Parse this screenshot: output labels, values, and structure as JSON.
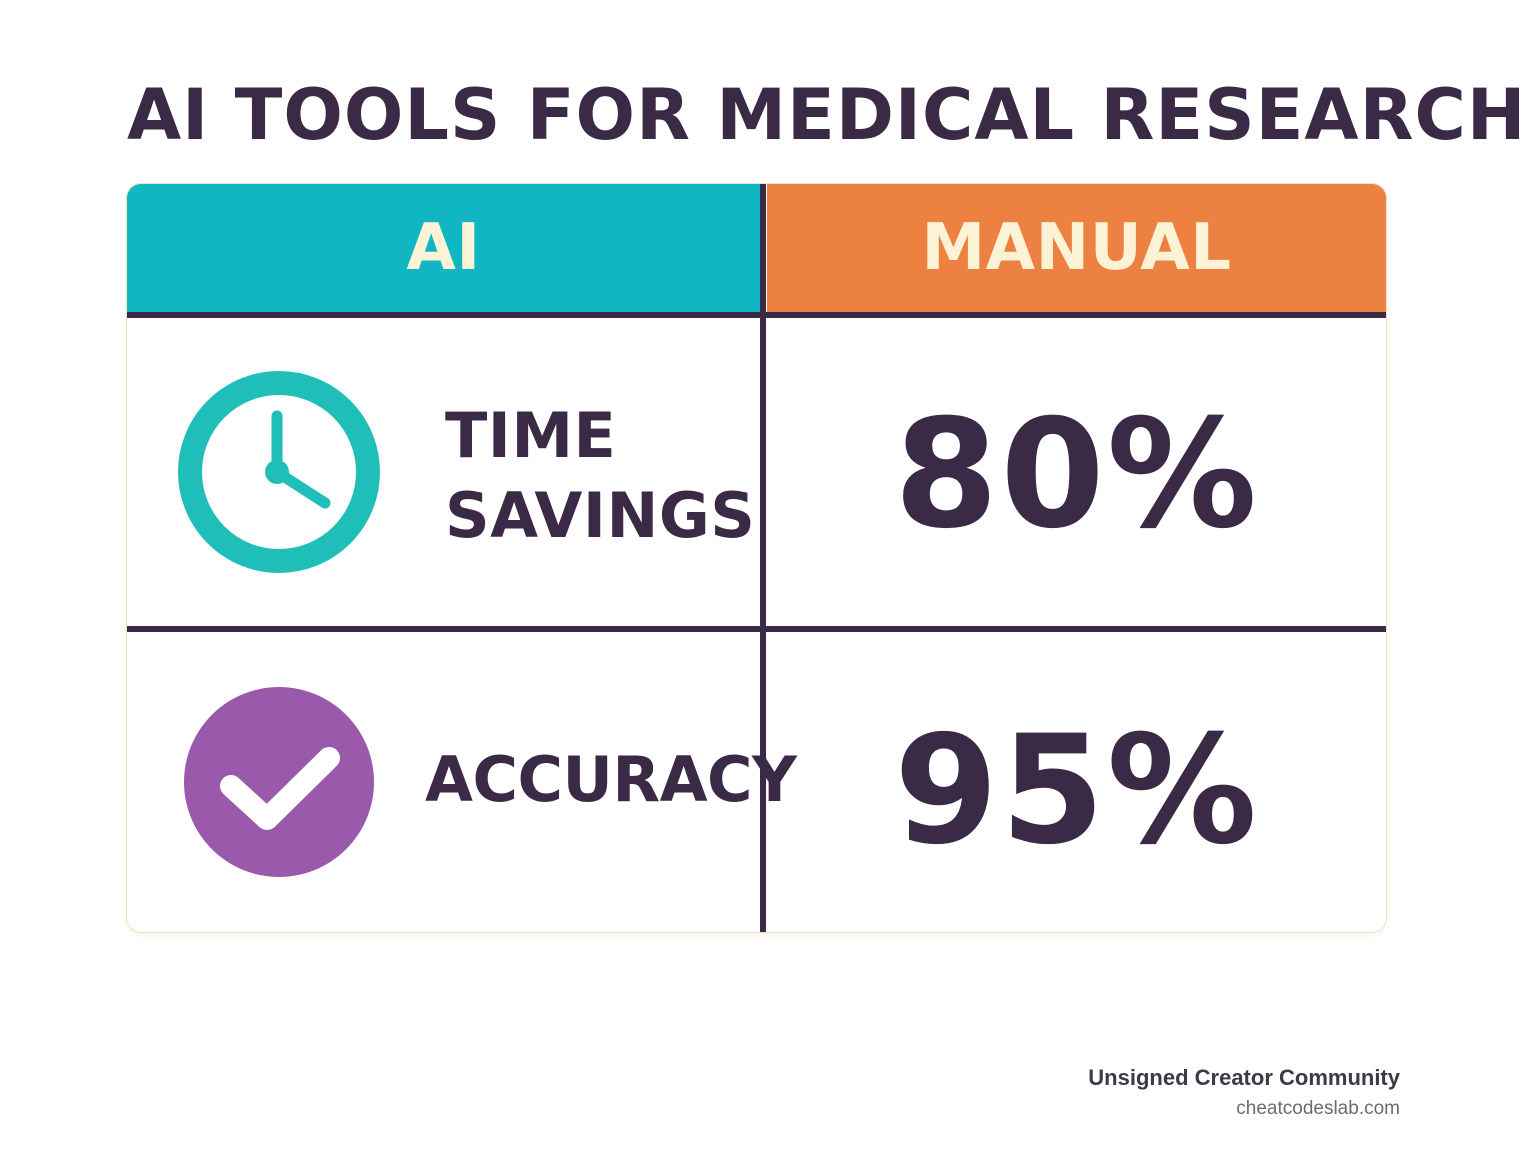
{
  "title": "AI TOOLS FOR MEDICAL RESEARCH",
  "table": {
    "headers": {
      "ai": "AI",
      "manual": "MANUAL"
    },
    "rows": [
      {
        "icon": "clock-icon",
        "icon_color": "#1fbeb8",
        "label_lines": [
          "TIME",
          "SAVINGS"
        ],
        "value": "80%"
      },
      {
        "icon": "check-circle-icon",
        "icon_color": "#9b59ab",
        "label": "ACCURACY",
        "value": "95%"
      }
    ]
  },
  "footer": {
    "name": "Unsigned Creator Community",
    "url": "cheatcodeslab.com"
  },
  "colors": {
    "text_dark": "#3a2a45",
    "ai_header": "#10b6c2",
    "manual_header": "#ec8142",
    "header_text": "#fcf3d6"
  }
}
